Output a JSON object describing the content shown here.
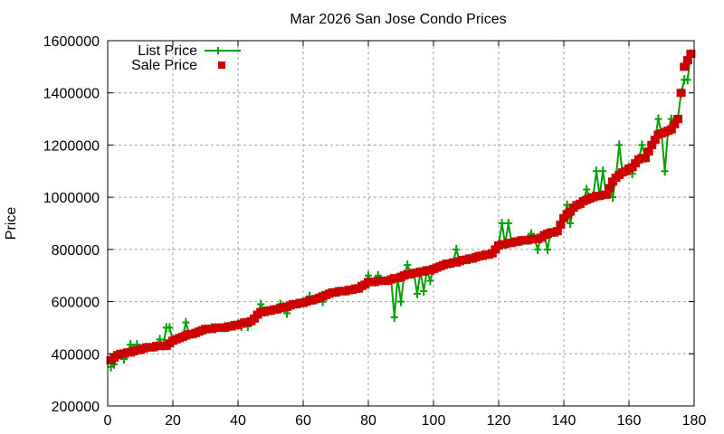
{
  "chart_data": {
    "type": "line",
    "title": "Mar 2026 San Jose Condo Prices",
    "xlabel": "",
    "ylabel": "Price",
    "xlim": [
      0,
      180
    ],
    "ylim": [
      200000,
      1600000
    ],
    "x_ticks": [
      "0",
      "20",
      "40",
      "60",
      "80",
      "100",
      "120",
      "140",
      "160",
      "180"
    ],
    "y_ticks": [
      "200000",
      "400000",
      "600000",
      "800000",
      "1000000",
      "1200000",
      "1400000",
      "1600000"
    ],
    "grid": true,
    "legend_position": "top-left",
    "series": [
      {
        "name": "List Price",
        "color": "#00a000",
        "style": "line+cross"
      },
      {
        "name": "Sale Price",
        "color": "#cc0000",
        "style": "square"
      }
    ],
    "sale_anchors": [
      [
        1,
        375000
      ],
      [
        3,
        395000
      ],
      [
        7,
        405000
      ],
      [
        12,
        425000
      ],
      [
        18,
        430000
      ],
      [
        20,
        450000
      ],
      [
        23,
        465000
      ],
      [
        27,
        480000
      ],
      [
        30,
        495000
      ],
      [
        36,
        500000
      ],
      [
        40,
        510000
      ],
      [
        44,
        525000
      ],
      [
        47,
        560000
      ],
      [
        52,
        570000
      ],
      [
        56,
        585000
      ],
      [
        60,
        595000
      ],
      [
        64,
        610000
      ],
      [
        68,
        630000
      ],
      [
        72,
        640000
      ],
      [
        77,
        650000
      ],
      [
        80,
        675000
      ],
      [
        86,
        680000
      ],
      [
        90,
        695000
      ],
      [
        94,
        710000
      ],
      [
        99,
        720000
      ],
      [
        103,
        740000
      ],
      [
        108,
        755000
      ],
      [
        113,
        770000
      ],
      [
        118,
        785000
      ],
      [
        120,
        815000
      ],
      [
        124,
        825000
      ],
      [
        128,
        835000
      ],
      [
        132,
        840000
      ],
      [
        135,
        860000
      ],
      [
        138,
        870000
      ],
      [
        140,
        920000
      ],
      [
        143,
        960000
      ],
      [
        146,
        985000
      ],
      [
        149,
        1000000
      ],
      [
        153,
        1010000
      ],
      [
        155,
        1060000
      ],
      [
        157,
        1085000
      ],
      [
        159,
        1100000
      ],
      [
        161,
        1115000
      ],
      [
        163,
        1145000
      ],
      [
        165,
        1150000
      ],
      [
        167,
        1200000
      ],
      [
        169,
        1240000
      ],
      [
        171,
        1250000
      ],
      [
        173,
        1260000
      ],
      [
        175,
        1300000
      ],
      [
        177,
        1500000
      ],
      [
        179,
        1550000
      ]
    ],
    "list_deviations": [
      [
        1,
        350000
      ],
      [
        2,
        360000
      ],
      [
        5,
        380000
      ],
      [
        7,
        435000
      ],
      [
        9,
        435000
      ],
      [
        16,
        455000
      ],
      [
        18,
        500000
      ],
      [
        19,
        500000
      ],
      [
        24,
        520000
      ],
      [
        26,
        475000
      ],
      [
        32,
        500000
      ],
      [
        41,
        505000
      ],
      [
        43,
        505000
      ],
      [
        45,
        540000
      ],
      [
        47,
        590000
      ],
      [
        53,
        590000
      ],
      [
        55,
        555000
      ],
      [
        58,
        590000
      ],
      [
        62,
        620000
      ],
      [
        66,
        600000
      ],
      [
        80,
        700000
      ],
      [
        83,
        700000
      ],
      [
        88,
        540000
      ],
      [
        90,
        600000
      ],
      [
        92,
        740000
      ],
      [
        95,
        630000
      ],
      [
        97,
        640000
      ],
      [
        99,
        680000
      ],
      [
        107,
        800000
      ],
      [
        121,
        900000
      ],
      [
        123,
        900000
      ],
      [
        130,
        860000
      ],
      [
        132,
        800000
      ],
      [
        135,
        800000
      ],
      [
        141,
        970000
      ],
      [
        142,
        900000
      ],
      [
        147,
        1030000
      ],
      [
        150,
        1100000
      ],
      [
        152,
        1100000
      ],
      [
        155,
        1000000
      ],
      [
        157,
        1200000
      ],
      [
        161,
        1090000
      ],
      [
        164,
        1200000
      ],
      [
        169,
        1300000
      ],
      [
        171,
        1100000
      ],
      [
        173,
        1300000
      ],
      [
        177,
        1450000
      ],
      [
        178,
        1450000
      ]
    ]
  },
  "legend": {
    "list_label": "List Price",
    "sale_label": "Sale Price"
  },
  "title": "Mar 2026 San Jose Condo Prices",
  "ylabel": "Price"
}
